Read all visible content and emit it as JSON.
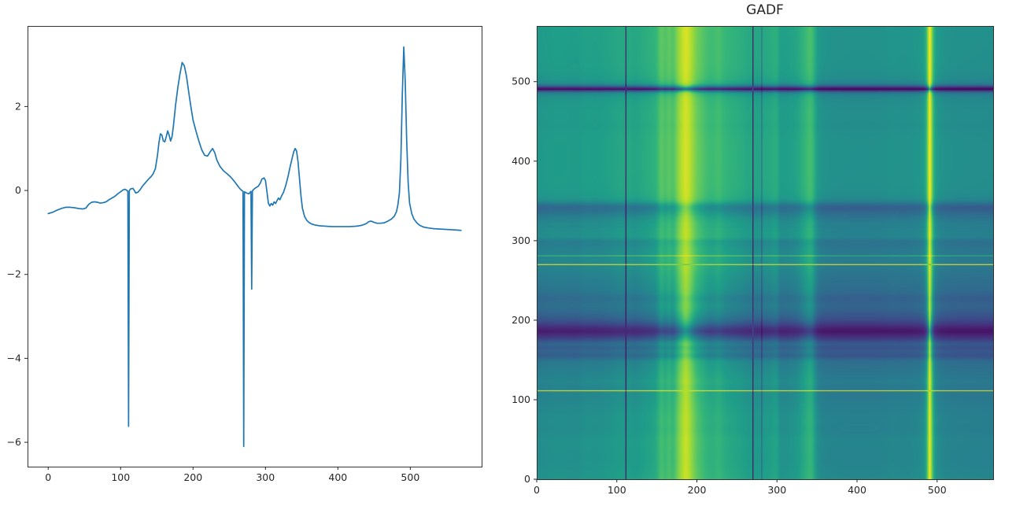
{
  "figure": {
    "background": "#ffffff"
  },
  "colors": {
    "axis_text": "#262626",
    "spine": "#333333",
    "line": "#1f77b4"
  },
  "chart_data": [
    {
      "type": "line",
      "title": "",
      "xlabel": "",
      "ylabel": "",
      "legend": null,
      "grid": false,
      "line_color": "#1f77b4",
      "x_ticks": [
        0,
        100,
        200,
        300,
        400,
        500
      ],
      "x_tick_labels": [
        "0",
        "100",
        "200",
        "300",
        "400",
        "500"
      ],
      "y_ticks": [
        2,
        0,
        -2,
        -4,
        -6
      ],
      "y_tick_labels": [
        "2",
        "0",
        "−2",
        "−4",
        "−6"
      ],
      "xlim": [
        -28.5,
        598.5
      ],
      "ylim": [
        -6.58,
        3.92
      ],
      "n_points": 571,
      "interpolation": "linear",
      "series_keypoints": [
        [
          0,
          -0.55
        ],
        [
          6,
          -0.52
        ],
        [
          12,
          -0.47
        ],
        [
          18,
          -0.43
        ],
        [
          24,
          -0.4
        ],
        [
          30,
          -0.4
        ],
        [
          36,
          -0.41
        ],
        [
          42,
          -0.43
        ],
        [
          48,
          -0.44
        ],
        [
          52,
          -0.42
        ],
        [
          56,
          -0.33
        ],
        [
          60,
          -0.28
        ],
        [
          64,
          -0.27
        ],
        [
          68,
          -0.28
        ],
        [
          72,
          -0.3
        ],
        [
          76,
          -0.29
        ],
        [
          80,
          -0.27
        ],
        [
          84,
          -0.22
        ],
        [
          88,
          -0.18
        ],
        [
          92,
          -0.14
        ],
        [
          96,
          -0.08
        ],
        [
          100,
          -0.03
        ],
        [
          103,
          0.01
        ],
        [
          106,
          0.03
        ],
        [
          108,
          0.01
        ],
        [
          110,
          -0.02
        ],
        [
          111,
          -5.62
        ],
        [
          112,
          0.0
        ],
        [
          114,
          0.04
        ],
        [
          117,
          0.05
        ],
        [
          119,
          0.0
        ],
        [
          121,
          -0.06
        ],
        [
          124,
          -0.04
        ],
        [
          127,
          0.02
        ],
        [
          130,
          0.1
        ],
        [
          134,
          0.18
        ],
        [
          138,
          0.26
        ],
        [
          142,
          0.33
        ],
        [
          145,
          0.4
        ],
        [
          148,
          0.52
        ],
        [
          151,
          0.85
        ],
        [
          153,
          1.15
        ],
        [
          155,
          1.35
        ],
        [
          157,
          1.32
        ],
        [
          159,
          1.18
        ],
        [
          161,
          1.16
        ],
        [
          163,
          1.28
        ],
        [
          165,
          1.42
        ],
        [
          167,
          1.32
        ],
        [
          169,
          1.18
        ],
        [
          171,
          1.28
        ],
        [
          173,
          1.55
        ],
        [
          176,
          2.05
        ],
        [
          179,
          2.45
        ],
        [
          182,
          2.78
        ],
        [
          185,
          3.05
        ],
        [
          188,
          2.97
        ],
        [
          191,
          2.72
        ],
        [
          194,
          2.35
        ],
        [
          197,
          2.0
        ],
        [
          200,
          1.68
        ],
        [
          204,
          1.42
        ],
        [
          208,
          1.18
        ],
        [
          212,
          0.97
        ],
        [
          216,
          0.84
        ],
        [
          220,
          0.82
        ],
        [
          224,
          0.93
        ],
        [
          227,
          1.0
        ],
        [
          230,
          0.9
        ],
        [
          233,
          0.72
        ],
        [
          237,
          0.58
        ],
        [
          242,
          0.47
        ],
        [
          247,
          0.4
        ],
        [
          252,
          0.32
        ],
        [
          256,
          0.24
        ],
        [
          260,
          0.15
        ],
        [
          263,
          0.08
        ],
        [
          266,
          0.02
        ],
        [
          269,
          -0.02
        ],
        [
          270,
          -6.1
        ],
        [
          271,
          -0.03
        ],
        [
          274,
          -0.06
        ],
        [
          277,
          -0.08
        ],
        [
          280,
          -0.02
        ],
        [
          281,
          -2.35
        ],
        [
          282,
          -0.01
        ],
        [
          284,
          0.03
        ],
        [
          287,
          0.07
        ],
        [
          290,
          0.1
        ],
        [
          293,
          0.18
        ],
        [
          295,
          0.27
        ],
        [
          298,
          0.3
        ],
        [
          300,
          0.24
        ],
        [
          302,
          -0.02
        ],
        [
          304,
          -0.3
        ],
        [
          306,
          -0.37
        ],
        [
          308,
          -0.31
        ],
        [
          310,
          -0.35
        ],
        [
          312,
          -0.27
        ],
        [
          314,
          -0.31
        ],
        [
          316,
          -0.24
        ],
        [
          318,
          -0.18
        ],
        [
          320,
          -0.22
        ],
        [
          322,
          -0.14
        ],
        [
          325,
          -0.04
        ],
        [
          328,
          0.12
        ],
        [
          331,
          0.32
        ],
        [
          334,
          0.56
        ],
        [
          337,
          0.78
        ],
        [
          339,
          0.92
        ],
        [
          341,
          1.0
        ],
        [
          343,
          0.94
        ],
        [
          345,
          0.68
        ],
        [
          347,
          0.28
        ],
        [
          349,
          -0.12
        ],
        [
          351,
          -0.42
        ],
        [
          354,
          -0.62
        ],
        [
          357,
          -0.71
        ],
        [
          360,
          -0.76
        ],
        [
          364,
          -0.8
        ],
        [
          368,
          -0.82
        ],
        [
          374,
          -0.84
        ],
        [
          382,
          -0.85
        ],
        [
          392,
          -0.86
        ],
        [
          404,
          -0.86
        ],
        [
          416,
          -0.86
        ],
        [
          426,
          -0.85
        ],
        [
          433,
          -0.83
        ],
        [
          439,
          -0.79
        ],
        [
          443,
          -0.74
        ],
        [
          446,
          -0.73
        ],
        [
          450,
          -0.76
        ],
        [
          454,
          -0.78
        ],
        [
          459,
          -0.78
        ],
        [
          464,
          -0.77
        ],
        [
          469,
          -0.73
        ],
        [
          474,
          -0.68
        ],
        [
          478,
          -0.61
        ],
        [
          481,
          -0.5
        ],
        [
          483,
          -0.33
        ],
        [
          485,
          -0.05
        ],
        [
          487,
          0.75
        ],
        [
          489,
          2.3
        ],
        [
          491,
          3.42
        ],
        [
          493,
          2.6
        ],
        [
          495,
          1.2
        ],
        [
          497,
          0.2
        ],
        [
          499,
          -0.3
        ],
        [
          502,
          -0.55
        ],
        [
          505,
          -0.68
        ],
        [
          509,
          -0.77
        ],
        [
          513,
          -0.83
        ],
        [
          518,
          -0.87
        ],
        [
          524,
          -0.89
        ],
        [
          532,
          -0.91
        ],
        [
          542,
          -0.92
        ],
        [
          552,
          -0.93
        ],
        [
          562,
          -0.94
        ],
        [
          570,
          -0.95
        ]
      ]
    },
    {
      "type": "heatmap",
      "title": "GADF",
      "transform": "gramian_angular_difference_field",
      "formula": "scale series to [-1,1]; phi=arccos(v); GADF[i][j]=sin(phi_i - phi_j)",
      "origin": "lower",
      "extent": [
        0,
        570,
        0,
        570
      ],
      "x_ticks": [
        0,
        100,
        200,
        300,
        400,
        500
      ],
      "x_tick_labels": [
        "0",
        "100",
        "200",
        "300",
        "400",
        "500"
      ],
      "y_ticks": [
        0,
        100,
        200,
        300,
        400,
        500
      ],
      "y_tick_labels": [
        "0",
        "100",
        "200",
        "300",
        "400",
        "500"
      ],
      "value_range": [
        -1,
        1
      ],
      "colormap": "viridis",
      "colormap_stops": [
        "#440154",
        "#482878",
        "#3e4989",
        "#31688e",
        "#26828e",
        "#1f9e89",
        "#35b779",
        "#6ece58",
        "#b5de2b",
        "#fde725"
      ]
    }
  ]
}
